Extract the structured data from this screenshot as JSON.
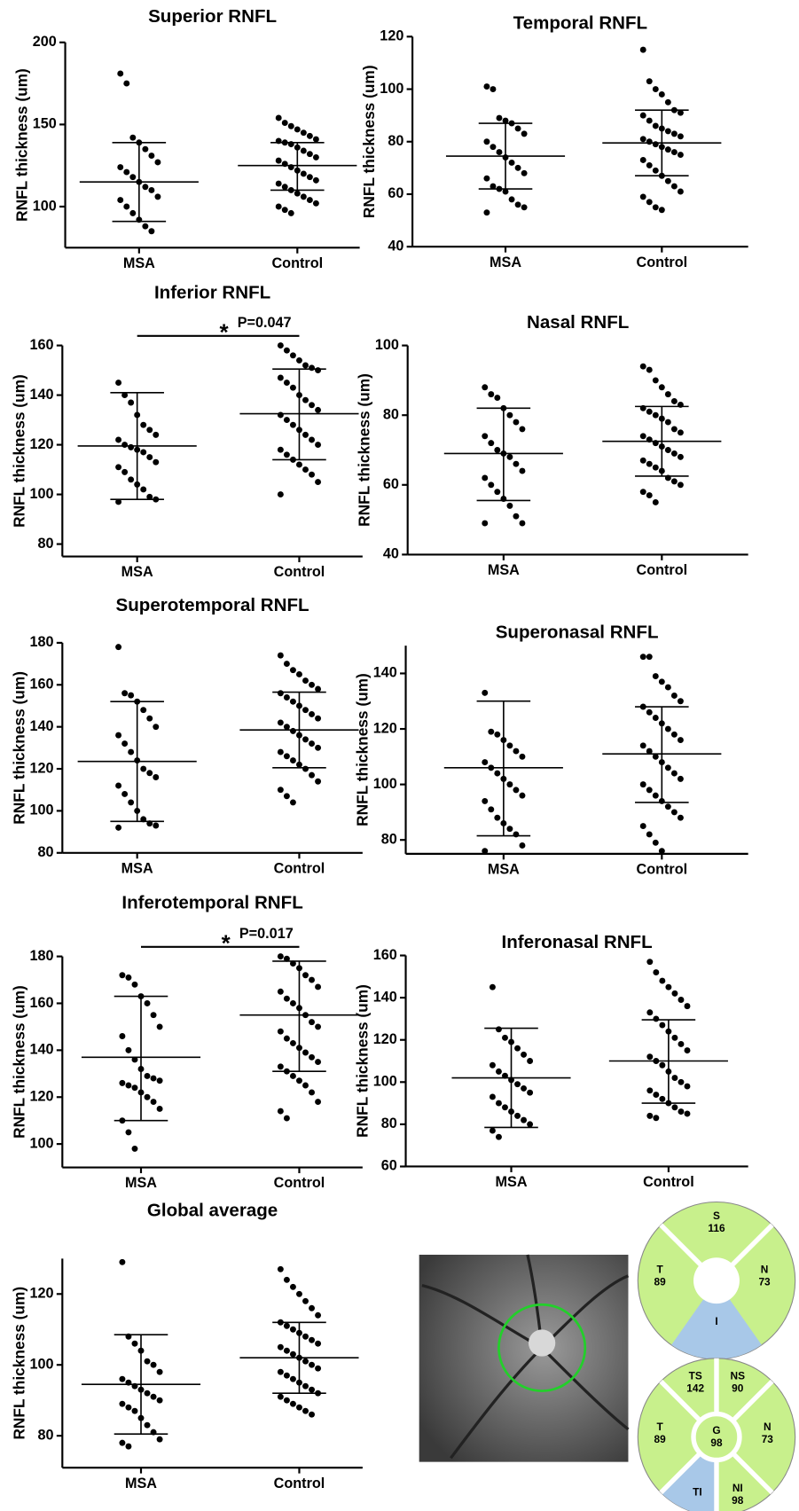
{
  "chart_data": [
    {
      "type": "dotplot",
      "title": "Superior RNFL",
      "ylabel": "RNFL thickness (um)",
      "categories": [
        "MSA",
        "Control"
      ],
      "ylim": [
        75,
        200
      ],
      "yticks": [
        100,
        150,
        200
      ],
      "color": "#000000",
      "values": [
        [
          181,
          175,
          142,
          139,
          135,
          131,
          127,
          124,
          121,
          118,
          115,
          112,
          110,
          106,
          104,
          100,
          96,
          92,
          88,
          85
        ],
        [
          154,
          151,
          149,
          147,
          145,
          143,
          141,
          140,
          139,
          138,
          136,
          134,
          132,
          130,
          128,
          126,
          124,
          122,
          120,
          118,
          116,
          114,
          112,
          110,
          108,
          106,
          104,
          102,
          100,
          98,
          96
        ]
      ],
      "means": [
        115,
        125
      ],
      "lower": [
        91,
        110
      ],
      "upper": [
        139,
        139
      ]
    },
    {
      "type": "dotplot",
      "title": "Temporal RNFL",
      "ylabel": "RNFL thickness (um)",
      "categories": [
        "MSA",
        "Control"
      ],
      "ylim": [
        40,
        120
      ],
      "yticks": [
        40,
        60,
        80,
        100,
        120
      ],
      "color": "#000000",
      "values": [
        [
          101,
          100,
          89,
          88,
          87,
          85,
          83,
          80,
          78,
          76,
          74,
          72,
          70,
          68,
          66,
          63,
          62,
          61,
          58,
          56,
          55,
          53
        ],
        [
          115,
          103,
          100,
          98,
          95,
          92,
          91,
          90,
          88,
          86,
          85,
          84,
          83,
          82,
          81,
          80,
          79,
          78,
          77,
          76,
          75,
          73,
          71,
          69,
          67,
          65,
          63,
          61,
          59,
          57,
          55,
          54
        ]
      ],
      "means": [
        74.5,
        79.5
      ],
      "lower": [
        62,
        67
      ],
      "upper": [
        87,
        92
      ]
    },
    {
      "type": "dotplot",
      "title": "Inferior RNFL",
      "ylabel": "RNFL thickness (um)",
      "categories": [
        "MSA",
        "Control"
      ],
      "ylim": [
        75,
        160
      ],
      "yticks": [
        80,
        100,
        120,
        140,
        160
      ],
      "color": "#000000",
      "values": [
        [
          145,
          140,
          137,
          132,
          128,
          126,
          124,
          122,
          120,
          119,
          118,
          117,
          115,
          113,
          111,
          109,
          106,
          104,
          102,
          99,
          98,
          97
        ],
        [
          160,
          158,
          156,
          154,
          152,
          151,
          150,
          147,
          145,
          143,
          140,
          138,
          136,
          134,
          132,
          130,
          128,
          126,
          124,
          122,
          120,
          118,
          116,
          114,
          112,
          110,
          108,
          105,
          100
        ]
      ],
      "means": [
        119.5,
        132.5
      ],
      "lower": [
        98,
        114
      ],
      "upper": [
        141,
        150.5
      ],
      "annotation": {
        "star": "*",
        "text": "P=0.047"
      }
    },
    {
      "type": "dotplot",
      "title": "Nasal RNFL",
      "ylabel": "RNFL thickness (um)",
      "categories": [
        "MSA",
        "Control"
      ],
      "ylim": [
        40,
        100
      ],
      "yticks": [
        40,
        60,
        80,
        100
      ],
      "color": "#000000",
      "values": [
        [
          88,
          86,
          85,
          82,
          80,
          78,
          76,
          74,
          72,
          70,
          69,
          68,
          66,
          64,
          62,
          60,
          58,
          56,
          54,
          51,
          49,
          49
        ],
        [
          94,
          93,
          90,
          88,
          86,
          84,
          83,
          82,
          81,
          80,
          79,
          78,
          76,
          75,
          74,
          73,
          72,
          71,
          70,
          69,
          68,
          67,
          66,
          65,
          64,
          62,
          61,
          60,
          58,
          57,
          55
        ]
      ],
      "means": [
        69,
        72.5
      ],
      "lower": [
        55.5,
        62.5
      ],
      "upper": [
        82,
        82.5
      ]
    },
    {
      "type": "dotplot",
      "title": "Superotemporal RNFL",
      "ylabel": "RNFL thickness (um)",
      "categories": [
        "MSA",
        "Control"
      ],
      "ylim": [
        80,
        180
      ],
      "yticks": [
        80,
        100,
        120,
        140,
        160,
        180
      ],
      "color": "#000000",
      "values": [
        [
          178,
          156,
          155,
          152,
          148,
          144,
          140,
          136,
          132,
          128,
          124,
          120,
          118,
          116,
          112,
          108,
          104,
          100,
          96,
          94,
          93,
          92
        ],
        [
          174,
          170,
          167,
          165,
          162,
          160,
          158,
          156,
          154,
          152,
          150,
          148,
          146,
          144,
          142,
          140,
          138,
          136,
          134,
          132,
          130,
          128,
          126,
          124,
          122,
          120,
          117,
          114,
          110,
          107,
          104
        ]
      ],
      "means": [
        123.5,
        138.5
      ],
      "lower": [
        95,
        120.5
      ],
      "upper": [
        152,
        156.5
      ]
    },
    {
      "type": "dotplot",
      "title": "Superonasal RNFL",
      "ylabel": "RNFL thickness (um)",
      "categories": [
        "MSA",
        "Control"
      ],
      "ylim": [
        75,
        150
      ],
      "yticks": [
        80,
        100,
        120,
        140
      ],
      "color": "#000000",
      "values": [
        [
          133,
          119,
          118,
          116,
          114,
          112,
          110,
          108,
          106,
          104,
          102,
          100,
          98,
          96,
          94,
          91,
          88,
          86,
          84,
          82,
          78,
          76
        ],
        [
          146,
          146,
          139,
          137,
          135,
          132,
          130,
          128,
          126,
          124,
          122,
          120,
          118,
          116,
          114,
          112,
          110,
          108,
          106,
          104,
          102,
          100,
          98,
          96,
          94,
          92,
          90,
          88,
          85,
          82,
          79,
          76
        ]
      ],
      "means": [
        106,
        111
      ],
      "lower": [
        81.5,
        93.5
      ],
      "upper": [
        130,
        128
      ]
    },
    {
      "type": "dotplot",
      "title": "Inferotemporal RNFL",
      "ylabel": "RNFL thickness (um)",
      "categories": [
        "MSA",
        "Control"
      ],
      "ylim": [
        90,
        180
      ],
      "yticks": [
        100,
        120,
        140,
        160,
        180
      ],
      "color": "#000000",
      "values": [
        [
          172,
          171,
          168,
          163,
          160,
          155,
          150,
          146,
          140,
          136,
          132,
          129,
          128,
          127,
          126,
          125,
          124,
          122,
          120,
          118,
          115,
          110,
          105,
          98
        ],
        [
          180,
          179,
          177,
          175,
          172,
          170,
          167,
          165,
          162,
          160,
          158,
          155,
          152,
          150,
          148,
          145,
          143,
          141,
          139,
          137,
          135,
          133,
          131,
          129,
          127,
          125,
          122,
          118,
          114,
          111
        ]
      ],
      "means": [
        137,
        155
      ],
      "lower": [
        110,
        131
      ],
      "upper": [
        163,
        178
      ],
      "annotation": {
        "star": "*",
        "text": "P=0.017"
      }
    },
    {
      "type": "dotplot",
      "title": "Inferonasal RNFL",
      "ylabel": "RNFL thickness (um)",
      "categories": [
        "MSA",
        "Control"
      ],
      "ylim": [
        60,
        160
      ],
      "yticks": [
        60,
        80,
        100,
        120,
        140,
        160
      ],
      "color": "#000000",
      "values": [
        [
          145,
          125,
          121,
          119,
          116,
          113,
          110,
          108,
          105,
          103,
          101,
          99,
          97,
          95,
          93,
          90,
          88,
          86,
          84,
          82,
          80,
          77,
          74
        ],
        [
          157,
          152,
          148,
          145,
          142,
          139,
          136,
          133,
          130,
          127,
          124,
          121,
          118,
          115,
          112,
          110,
          108,
          105,
          102,
          100,
          98,
          96,
          94,
          92,
          90,
          88,
          86,
          85,
          84,
          83
        ]
      ],
      "means": [
        102,
        110
      ],
      "lower": [
        78.5,
        90
      ],
      "upper": [
        125.5,
        129.5
      ]
    },
    {
      "type": "dotplot",
      "title": "Global average",
      "ylabel": "RNFL thickness (um)",
      "categories": [
        "MSA",
        "Control"
      ],
      "ylim": [
        71,
        130
      ],
      "yticks": [
        80,
        100,
        120
      ],
      "color": "#000000",
      "values": [
        [
          129,
          108,
          106,
          104,
          101,
          100,
          98,
          96,
          95,
          94,
          93,
          92,
          91,
          90,
          89,
          88,
          87,
          85,
          83,
          81,
          79,
          78,
          77
        ],
        [
          127,
          124,
          122,
          120,
          118,
          116,
          114,
          112,
          111,
          110,
          109,
          108,
          107,
          106,
          105,
          104,
          103,
          102,
          101,
          100,
          99,
          98,
          97,
          96,
          95,
          94,
          93,
          92,
          91,
          90,
          89,
          88,
          87,
          86
        ]
      ],
      "means": [
        94.5,
        102
      ],
      "lower": [
        80.5,
        92
      ],
      "upper": [
        108.5,
        112
      ]
    }
  ],
  "diagrams": {
    "quadrants": [
      {
        "label": "S",
        "value": 116
      },
      {
        "label": "T",
        "value": 89
      },
      {
        "label": "N",
        "value": 73
      },
      {
        "label": "I"
      }
    ],
    "sectors": [
      {
        "label": "TS",
        "value": 142
      },
      {
        "label": "NS",
        "value": 90
      },
      {
        "label": "T",
        "value": 89
      },
      {
        "label": "G",
        "value": 98
      },
      {
        "label": "N",
        "value": 73
      },
      {
        "label": "NI",
        "value": 98
      },
      {
        "label": "TI"
      }
    ]
  }
}
